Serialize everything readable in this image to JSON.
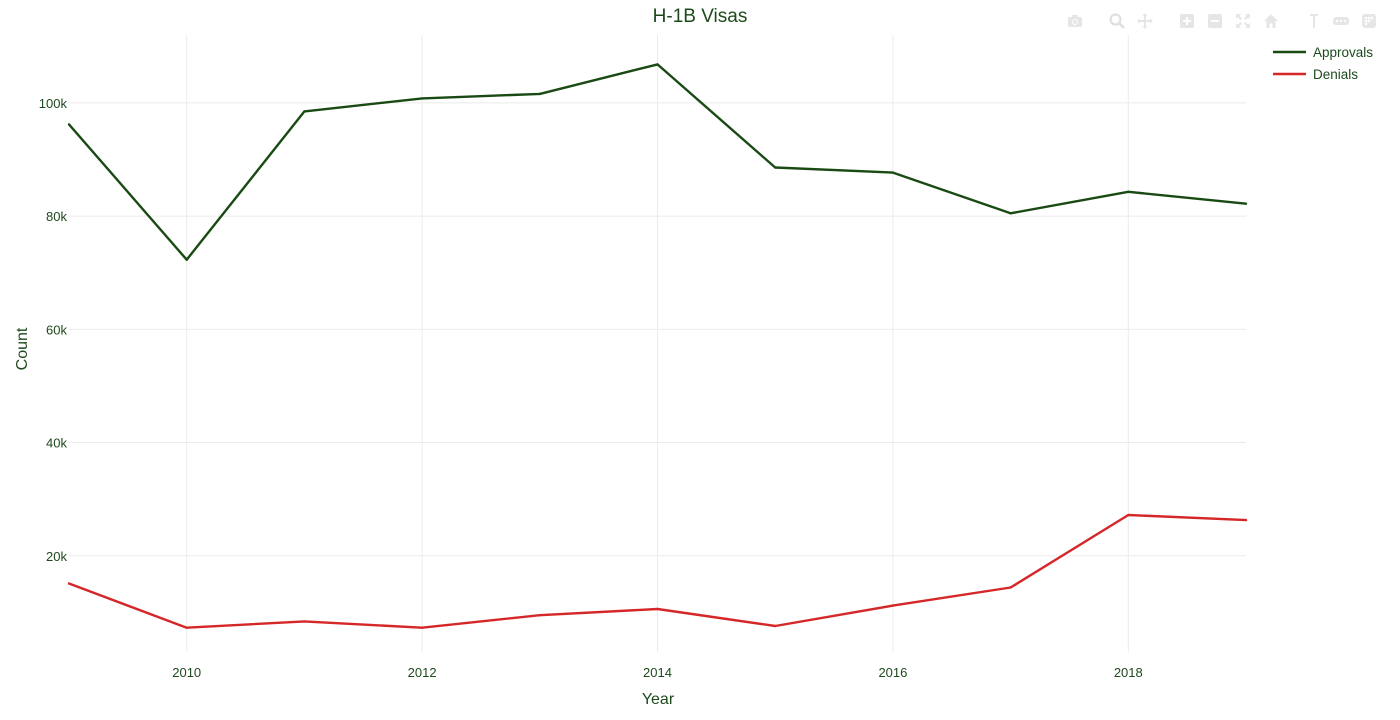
{
  "chart_data": {
    "type": "line",
    "title": "H-1B Visas",
    "xlabel": "Year",
    "ylabel": "Count",
    "x": [
      2009,
      2010,
      2011,
      2012,
      2013,
      2014,
      2015,
      2016,
      2017,
      2018,
      2019
    ],
    "xlim": [
      2009,
      2019
    ],
    "ylim": [
      3000,
      112000
    ],
    "x_ticks": [
      2010,
      2012,
      2014,
      2016,
      2018
    ],
    "x_tick_labels": [
      "2010",
      "2012",
      "2014",
      "2016",
      "2018"
    ],
    "y_ticks": [
      20000,
      40000,
      60000,
      80000,
      100000
    ],
    "y_tick_labels": [
      "20k",
      "40k",
      "60k",
      "80k",
      "100k"
    ],
    "grid": true,
    "legend_position": "top-right",
    "colors": {
      "text": "#1d4a1d",
      "grid": "#ebebeb",
      "approvals": "#1a4a14",
      "denials": "#d62728"
    },
    "series": [
      {
        "name": "Approvals",
        "color": "#1a4a14",
        "values": [
          96200,
          72300,
          98500,
          100800,
          101600,
          106800,
          88600,
          87700,
          80500,
          84300,
          82200
        ]
      },
      {
        "name": "Denials",
        "color": "#d62728",
        "values": [
          15100,
          7300,
          8400,
          7300,
          9500,
          10600,
          7600,
          11200,
          14400,
          27200,
          26300
        ]
      }
    ]
  },
  "modebar": {
    "icons": [
      "camera-icon",
      "zoom-icon",
      "pan-icon",
      "zoom-in-icon",
      "zoom-out-icon",
      "autoscale-icon",
      "home-icon",
      "spike-lines-icon",
      "compare-hover-icon",
      "plotly-logo-icon"
    ]
  }
}
